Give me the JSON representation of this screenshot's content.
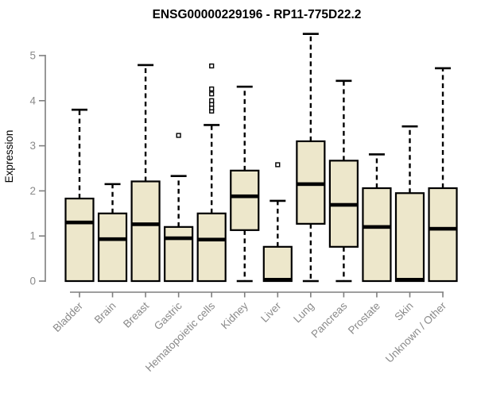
{
  "chart_data": {
    "type": "boxplot",
    "title": "ENSG00000229196 - RP11-775D22.2",
    "ylabel": "Expression",
    "xlabel": "",
    "ylim": [
      0,
      5
    ],
    "yticks": [
      0,
      1,
      2,
      3,
      4,
      5
    ],
    "grid": false,
    "legend_position": "none",
    "colors": {
      "box_fill": "#EDE7CB",
      "box_stroke": "#000000",
      "median": "#000000",
      "whisker": "#000000",
      "axis": "#7F7F7F",
      "tick_text": "#8A8A8A",
      "title_text": "#000000",
      "background": "#FFFFFF"
    },
    "categories": [
      "Bladder",
      "Brain",
      "Breast",
      "Gastric",
      "Hematopoietic cells",
      "Kidney",
      "Liver",
      "Lung",
      "Pancreas",
      "Prostate",
      "Skin",
      "Unknown / Other"
    ],
    "boxes": [
      {
        "category": "Bladder",
        "whisker_low": 0,
        "q1": 0,
        "median": 1.3,
        "q3": 1.83,
        "whisker_high": 3.8,
        "outliers": []
      },
      {
        "category": "Brain",
        "whisker_low": 0,
        "q1": 0,
        "median": 0.93,
        "q3": 1.5,
        "whisker_high": 2.15,
        "outliers": []
      },
      {
        "category": "Breast",
        "whisker_low": 0,
        "q1": 0,
        "median": 1.26,
        "q3": 2.21,
        "whisker_high": 4.79,
        "outliers": []
      },
      {
        "category": "Gastric",
        "whisker_low": 0,
        "q1": 0,
        "median": 0.95,
        "q3": 1.2,
        "whisker_high": 2.33,
        "outliers": [
          3.23
        ]
      },
      {
        "category": "Hematopoietic cells",
        "whisker_low": 0,
        "q1": 0,
        "median": 0.92,
        "q3": 1.5,
        "whisker_high": 3.46,
        "outliers": [
          3.77,
          3.84,
          3.92,
          4.0,
          4.15,
          4.26,
          4.77
        ]
      },
      {
        "category": "Kidney",
        "whisker_low": 0,
        "q1": 1.13,
        "median": 1.88,
        "q3": 2.45,
        "whisker_high": 4.31,
        "outliers": []
      },
      {
        "category": "Liver",
        "whisker_low": 0,
        "q1": 0,
        "median": 0.03,
        "q3": 0.76,
        "whisker_high": 1.78,
        "outliers": [
          2.58
        ]
      },
      {
        "category": "Lung",
        "whisker_low": 0,
        "q1": 1.27,
        "median": 2.15,
        "q3": 3.1,
        "whisker_high": 5.48,
        "outliers": []
      },
      {
        "category": "Pancreas",
        "whisker_low": 0,
        "q1": 0.76,
        "median": 1.69,
        "q3": 2.67,
        "whisker_high": 4.44,
        "outliers": []
      },
      {
        "category": "Prostate",
        "whisker_low": 0,
        "q1": 0,
        "median": 1.2,
        "q3": 2.06,
        "whisker_high": 2.81,
        "outliers": []
      },
      {
        "category": "Skin",
        "whisker_low": 0,
        "q1": 0,
        "median": 0.03,
        "q3": 1.95,
        "whisker_high": 3.43,
        "outliers": []
      },
      {
        "category": "Unknown / Other",
        "whisker_low": 0,
        "q1": 0,
        "median": 1.16,
        "q3": 2.06,
        "whisker_high": 4.72,
        "outliers": []
      }
    ]
  }
}
